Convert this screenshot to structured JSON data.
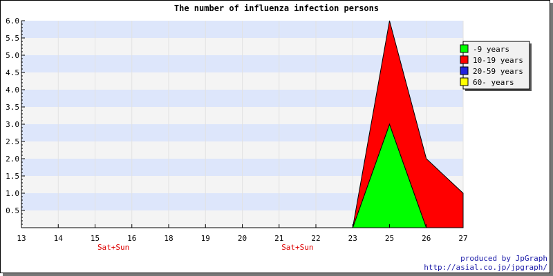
{
  "chart_data": {
    "type": "area",
    "title": "The number of influenza infection persons",
    "xlabel": "",
    "ylabel": "",
    "x": [
      "13",
      "14",
      "15",
      "16",
      "18",
      "19",
      "20",
      "21",
      "22",
      "23",
      "25",
      "26",
      "27"
    ],
    "weekend_marks": [
      "Sat+Sun",
      "Sat+Sun"
    ],
    "ylim": [
      0,
      6
    ],
    "yticks": [
      "0.5",
      "1.0",
      "1.5",
      "2.0",
      "2.5",
      "3.0",
      "3.5",
      "4.0",
      "4.5",
      "5.0",
      "5.5",
      "6.0"
    ],
    "stacked": true,
    "series": [
      {
        "name": "-9 years",
        "color": "#00ff00",
        "values": [
          0,
          0,
          0,
          0,
          0,
          0,
          0,
          0,
          0,
          0,
          3,
          0,
          0
        ]
      },
      {
        "name": "10-19 years",
        "color": "#ff0000",
        "values": [
          0,
          0,
          0,
          0,
          0,
          0,
          0,
          0,
          0,
          0,
          3,
          2,
          1
        ]
      },
      {
        "name": "20-59 years",
        "color": "#2222dd",
        "values": [
          0,
          0,
          0,
          0,
          0,
          0,
          0,
          0,
          0,
          0,
          0,
          0,
          0
        ]
      },
      {
        "name": "60- years",
        "color": "#ffff00",
        "values": [
          0,
          0,
          0,
          0,
          0,
          0,
          0,
          0,
          0,
          0,
          0,
          0,
          0
        ]
      }
    ],
    "grid": true,
    "band_colors": [
      "#dde6fb",
      "#f4f4f4"
    ],
    "legend_position": "top-right"
  },
  "footer": {
    "credit_line1": "produced by JpGraph",
    "credit_line2": "http://asial.co.jp/jpgraph/"
  }
}
